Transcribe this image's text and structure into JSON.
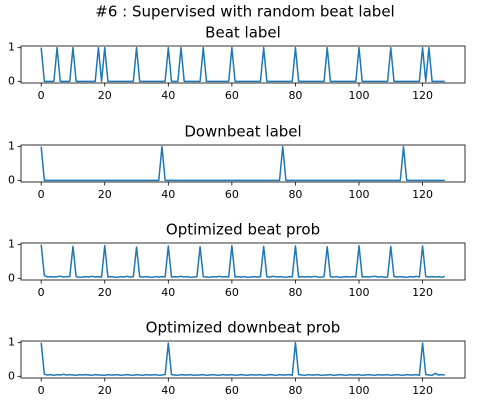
{
  "suptitle": "#6 : Supervised with random beat label",
  "chart_data": [
    {
      "type": "line",
      "title": "Beat label",
      "color": "#1f77b4",
      "xlim": [
        -6.35,
        133.35
      ],
      "xticks": [
        0,
        20,
        40,
        60,
        80,
        100,
        120
      ],
      "ylim": [
        -0.05,
        1.05
      ],
      "yticks": [
        0,
        1
      ],
      "values": [
        1,
        0,
        0,
        0,
        0,
        1,
        0,
        0,
        0,
        0,
        1,
        0,
        0,
        0,
        0,
        0,
        0,
        0,
        1,
        0,
        1,
        0,
        0,
        0,
        0,
        0,
        0,
        0,
        0,
        0,
        1,
        0,
        0,
        0,
        0,
        0,
        0,
        0,
        0,
        0,
        1,
        0,
        0,
        0,
        1,
        0,
        0,
        0,
        0,
        0,
        0,
        1,
        0,
        0,
        0,
        0,
        0,
        0,
        0,
        0,
        1,
        0,
        0,
        0,
        0,
        0,
        0,
        0,
        0,
        0,
        1,
        0,
        0,
        0,
        0,
        0,
        0,
        0,
        0,
        0,
        1,
        0,
        0,
        0,
        0,
        0,
        0,
        0,
        0,
        0,
        1,
        0,
        0,
        0,
        0,
        0,
        0,
        0,
        0,
        0,
        1,
        0,
        0,
        0,
        0,
        0,
        0,
        0,
        0,
        0,
        1,
        0,
        0,
        0,
        0,
        0,
        0,
        0,
        0,
        0,
        1,
        0,
        1,
        0,
        0,
        0,
        0,
        0
      ]
    },
    {
      "type": "line",
      "title": "Downbeat label",
      "color": "#1f77b4",
      "xlim": [
        -6.35,
        133.35
      ],
      "xticks": [
        0,
        20,
        40,
        60,
        80,
        100,
        120
      ],
      "ylim": [
        -0.05,
        1.05
      ],
      "yticks": [
        0,
        1
      ],
      "values": [
        1,
        0,
        0,
        0,
        0,
        0,
        0,
        0,
        0,
        0,
        0,
        0,
        0,
        0,
        0,
        0,
        0,
        0,
        0,
        0,
        0,
        0,
        0,
        0,
        0,
        0,
        0,
        0,
        0,
        0,
        0,
        0,
        0,
        0,
        0,
        0,
        0,
        0,
        1,
        0,
        0,
        0,
        0,
        0,
        0,
        0,
        0,
        0,
        0,
        0,
        0,
        0,
        0,
        0,
        0,
        0,
        0,
        0,
        0,
        0,
        0,
        0,
        0,
        0,
        0,
        0,
        0,
        0,
        0,
        0,
        0,
        0,
        0,
        0,
        0,
        0,
        1,
        0,
        0,
        0,
        0,
        0,
        0,
        0,
        0,
        0,
        0,
        0,
        0,
        0,
        0,
        0,
        0,
        0,
        0,
        0,
        0,
        0,
        0,
        0,
        0,
        0,
        0,
        0,
        0,
        0,
        0,
        0,
        0,
        0,
        0,
        0,
        0,
        0,
        1,
        0,
        0,
        0,
        0,
        0,
        0,
        0,
        0,
        0,
        0,
        0,
        0,
        0
      ]
    },
    {
      "type": "line",
      "title": "Optimized beat prob",
      "color": "#1f77b4",
      "xlim": [
        -6.35,
        133.35
      ],
      "xticks": [
        0,
        20,
        40,
        60,
        80,
        100,
        120
      ],
      "ylim": [
        -0.05,
        1.05
      ],
      "yticks": [
        0,
        1
      ],
      "values": [
        1.0,
        0.08,
        0.04,
        0.05,
        0.04,
        0.05,
        0.06,
        0.04,
        0.05,
        0.05,
        0.95,
        0.05,
        0.03,
        0.04,
        0.05,
        0.04,
        0.06,
        0.04,
        0.05,
        0.04,
        0.97,
        0.04,
        0.05,
        0.04,
        0.03,
        0.05,
        0.04,
        0.06,
        0.04,
        0.05,
        0.93,
        0.05,
        0.04,
        0.05,
        0.04,
        0.03,
        0.05,
        0.04,
        0.05,
        0.04,
        0.96,
        0.04,
        0.05,
        0.04,
        0.06,
        0.04,
        0.05,
        0.03,
        0.04,
        0.05,
        0.94,
        0.05,
        0.04,
        0.03,
        0.05,
        0.04,
        0.06,
        0.04,
        0.05,
        0.04,
        0.97,
        0.04,
        0.05,
        0.04,
        0.05,
        0.03,
        0.04,
        0.05,
        0.04,
        0.05,
        0.95,
        0.05,
        0.04,
        0.06,
        0.04,
        0.05,
        0.04,
        0.03,
        0.05,
        0.04,
        0.96,
        0.04,
        0.05,
        0.04,
        0.05,
        0.04,
        0.06,
        0.04,
        0.03,
        0.05,
        0.94,
        0.05,
        0.04,
        0.05,
        0.03,
        0.04,
        0.05,
        0.04,
        0.05,
        0.04,
        0.97,
        0.04,
        0.05,
        0.04,
        0.05,
        0.06,
        0.04,
        0.05,
        0.03,
        0.04,
        0.95,
        0.05,
        0.04,
        0.05,
        0.04,
        0.03,
        0.05,
        0.04,
        0.06,
        0.04,
        0.96,
        0.05,
        0.04,
        0.05,
        0.04,
        0.05,
        0.03,
        0.06
      ]
    },
    {
      "type": "line",
      "title": "Optimized downbeat prob",
      "color": "#1f77b4",
      "xlim": [
        -6.35,
        133.35
      ],
      "xticks": [
        0,
        20,
        40,
        60,
        80,
        100,
        120
      ],
      "ylim": [
        -0.05,
        1.05
      ],
      "yticks": [
        0,
        1
      ],
      "values": [
        1.0,
        0.06,
        0.04,
        0.05,
        0.03,
        0.05,
        0.04,
        0.06,
        0.04,
        0.05,
        0.04,
        0.03,
        0.05,
        0.04,
        0.05,
        0.04,
        0.03,
        0.05,
        0.04,
        0.04,
        0.03,
        0.05,
        0.04,
        0.04,
        0.05,
        0.03,
        0.04,
        0.05,
        0.04,
        0.03,
        0.05,
        0.04,
        0.03,
        0.05,
        0.04,
        0.04,
        0.05,
        0.03,
        0.04,
        0.05,
        0.99,
        0.05,
        0.04,
        0.03,
        0.05,
        0.04,
        0.04,
        0.05,
        0.03,
        0.04,
        0.04,
        0.05,
        0.03,
        0.04,
        0.05,
        0.04,
        0.03,
        0.05,
        0.04,
        0.04,
        0.05,
        0.03,
        0.04,
        0.05,
        0.04,
        0.03,
        0.05,
        0.04,
        0.04,
        0.05,
        0.03,
        0.04,
        0.05,
        0.04,
        0.03,
        0.05,
        0.04,
        0.04,
        0.05,
        0.03,
        1.0,
        0.05,
        0.04,
        0.03,
        0.05,
        0.04,
        0.04,
        0.05,
        0.03,
        0.04,
        0.04,
        0.05,
        0.03,
        0.04,
        0.05,
        0.04,
        0.03,
        0.05,
        0.04,
        0.04,
        0.05,
        0.03,
        0.04,
        0.05,
        0.04,
        0.03,
        0.05,
        0.04,
        0.04,
        0.05,
        0.03,
        0.04,
        0.05,
        0.04,
        0.03,
        0.05,
        0.04,
        0.04,
        0.05,
        0.03,
        0.99,
        0.05,
        0.04,
        0.03,
        0.09,
        0.04,
        0.05,
        0.04
      ]
    }
  ]
}
